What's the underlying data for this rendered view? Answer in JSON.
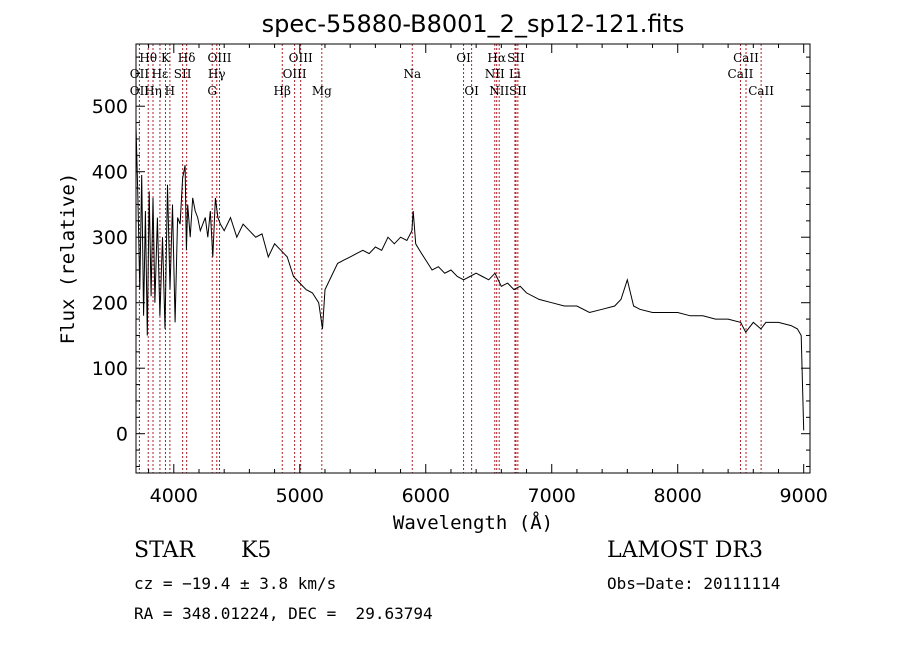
{
  "chart_data": {
    "type": "line",
    "title": "spec-55880-B8001_2_sp12-121.fits",
    "xlabel": "Wavelength (Å)",
    "ylabel": "Flux (relative)",
    "xlim": [
      3700,
      9050
    ],
    "ylim": [
      -60,
      595
    ],
    "x_ticks": [
      4000,
      5000,
      6000,
      7000,
      8000,
      9000
    ],
    "y_ticks": [
      0,
      100,
      200,
      300,
      400,
      500
    ],
    "series": [
      {
        "name": "spectrum",
        "x": [
          3700,
          3715,
          3730,
          3745,
          3760,
          3775,
          3790,
          3805,
          3820,
          3835,
          3850,
          3870,
          3890,
          3910,
          3930,
          3950,
          3970,
          3990,
          4010,
          4030,
          4050,
          4070,
          4090,
          4100,
          4110,
          4130,
          4150,
          4170,
          4190,
          4210,
          4230,
          4250,
          4270,
          4290,
          4310,
          4330,
          4350,
          4370,
          4400,
          4450,
          4500,
          4550,
          4600,
          4650,
          4700,
          4750,
          4800,
          4850,
          4900,
          4950,
          5000,
          5050,
          5100,
          5150,
          5180,
          5200,
          5250,
          5300,
          5350,
          5400,
          5450,
          5500,
          5550,
          5600,
          5650,
          5700,
          5750,
          5800,
          5850,
          5890,
          5900,
          5920,
          5950,
          6000,
          6050,
          6100,
          6150,
          6200,
          6250,
          6300,
          6350,
          6400,
          6450,
          6500,
          6550,
          6600,
          6650,
          6700,
          6750,
          6800,
          6900,
          7000,
          7100,
          7200,
          7300,
          7400,
          7500,
          7550,
          7600,
          7650,
          7700,
          7800,
          7900,
          8000,
          8100,
          8200,
          8300,
          8400,
          8500,
          8540,
          8600,
          8660,
          8700,
          8800,
          8900,
          8950,
          8980,
          9000
        ],
        "y": [
          470,
          360,
          220,
          395,
          180,
          340,
          150,
          370,
          210,
          360,
          200,
          330,
          180,
          300,
          160,
          380,
          220,
          350,
          170,
          330,
          320,
          390,
          410,
          280,
          350,
          300,
          360,
          340,
          330,
          310,
          320,
          330,
          300,
          340,
          270,
          360,
          330,
          320,
          310,
          330,
          300,
          320,
          310,
          300,
          305,
          270,
          290,
          280,
          270,
          240,
          230,
          220,
          215,
          200,
          160,
          220,
          240,
          260,
          265,
          270,
          275,
          280,
          275,
          285,
          280,
          300,
          290,
          300,
          295,
          310,
          340,
          290,
          280,
          265,
          250,
          255,
          245,
          250,
          240,
          235,
          240,
          245,
          240,
          235,
          245,
          225,
          230,
          220,
          225,
          215,
          205,
          200,
          195,
          195,
          185,
          190,
          195,
          205,
          235,
          195,
          190,
          185,
          185,
          185,
          180,
          180,
          175,
          175,
          170,
          155,
          170,
          160,
          170,
          170,
          165,
          160,
          150,
          5
        ]
      }
    ],
    "spectral_lines": [
      {
        "label": "Hθ",
        "x": 3797,
        "row": 1
      },
      {
        "label": "OII",
        "x": 3727,
        "row": 2
      },
      {
        "label": "OII",
        "x": 3727,
        "row": 3
      },
      {
        "label": "Hε",
        "x": 3890,
        "row": 2
      },
      {
        "label": "Hη",
        "x": 3835,
        "row": 3
      },
      {
        "label": "K",
        "x": 3934,
        "row": 1
      },
      {
        "label": "H",
        "x": 3969,
        "row": 3
      },
      {
        "label": "SII",
        "x": 4070,
        "row": 2
      },
      {
        "label": "Hδ",
        "x": 4102,
        "row": 1
      },
      {
        "label": "OIII",
        "x": 4363,
        "row": 1
      },
      {
        "label": "Hγ",
        "x": 4341,
        "row": 2
      },
      {
        "label": "G",
        "x": 4305,
        "row": 3
      },
      {
        "label": "Hβ",
        "x": 4861,
        "row": 3
      },
      {
        "label": "OIII",
        "x": 5007,
        "row": 1
      },
      {
        "label": "OIII",
        "x": 4959,
        "row": 2
      },
      {
        "label": "Mg",
        "x": 5175,
        "row": 3
      },
      {
        "label": "Na",
        "x": 5893,
        "row": 2
      },
      {
        "label": "OI",
        "x": 6300,
        "row": 1
      },
      {
        "label": "OI",
        "x": 6364,
        "row": 3
      },
      {
        "label": "Hα",
        "x": 6563,
        "row": 1
      },
      {
        "label": "NII",
        "x": 6548,
        "row": 2
      },
      {
        "label": "NII",
        "x": 6583,
        "row": 3
      },
      {
        "label": "SII",
        "x": 6716,
        "row": 1
      },
      {
        "label": "Li",
        "x": 6708,
        "row": 2
      },
      {
        "label": "SII",
        "x": 6731,
        "row": 3
      },
      {
        "label": "CaII",
        "x": 8542,
        "row": 1
      },
      {
        "label": "CaII",
        "x": 8498,
        "row": 2
      },
      {
        "label": "CaII",
        "x": 8662,
        "row": 3
      }
    ]
  },
  "info": {
    "object_class": "STAR",
    "subclass": "K5",
    "survey": "LAMOST DR3",
    "redshift": "cz = −19.4 ± 3.8 km/s",
    "obs_date": "Obs−Date: 20111114",
    "coords": "RA = 348.01224, DEC =  29.63794"
  },
  "colors": {
    "line_marker": "#b0202a",
    "spectrum": "#000000",
    "axes": "#000000"
  }
}
